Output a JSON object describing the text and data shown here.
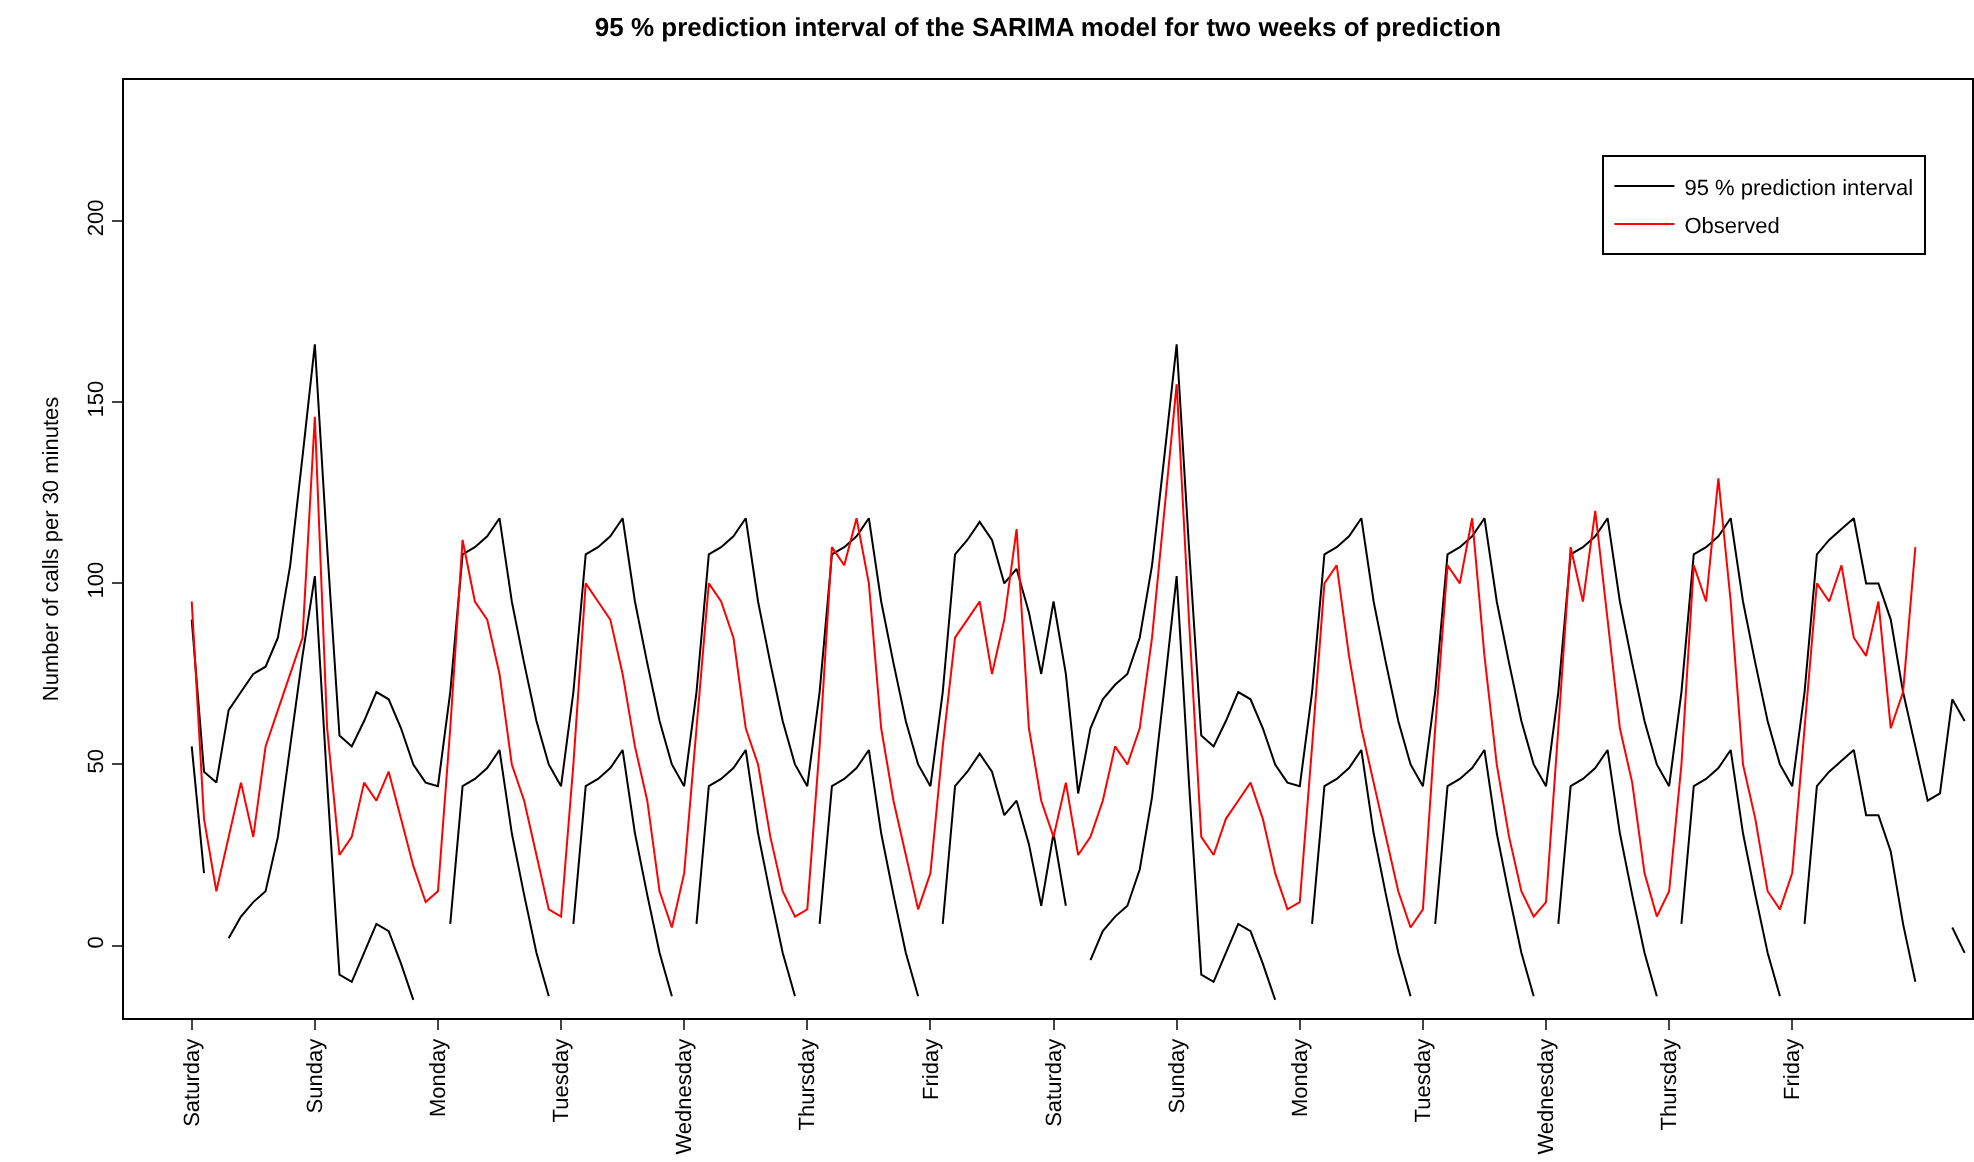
{
  "chart_data": {
    "type": "line",
    "title": "95 % prediction interval of the SARIMA model for two weeks of prediction",
    "ylabel": "Number of calls per 30 minutes",
    "categories": [
      "Saturday",
      null,
      null,
      null,
      null,
      null,
      null,
      null,
      null,
      null,
      "Sunday",
      null,
      null,
      null,
      null,
      null,
      null,
      null,
      null,
      null,
      "Monday",
      null,
      null,
      null,
      null,
      null,
      null,
      null,
      null,
      null,
      "Tuesday",
      null,
      null,
      null,
      null,
      null,
      null,
      null,
      null,
      null,
      "Wednesday",
      null,
      null,
      null,
      null,
      null,
      null,
      null,
      null,
      null,
      "Thursday",
      null,
      null,
      null,
      null,
      null,
      null,
      null,
      null,
      null,
      "Friday",
      null,
      null,
      null,
      null,
      null,
      null,
      null,
      null,
      null,
      "Saturday",
      null,
      null,
      null,
      null,
      null,
      null,
      null,
      null,
      null,
      "Sunday",
      null,
      null,
      null,
      null,
      null,
      null,
      null,
      null,
      null,
      "Monday",
      null,
      null,
      null,
      null,
      null,
      null,
      null,
      null,
      null,
      "Tuesday",
      null,
      null,
      null,
      null,
      null,
      null,
      null,
      null,
      null,
      "Wednesday",
      null,
      null,
      null,
      null,
      null,
      null,
      null,
      null,
      null,
      "Thursday",
      null,
      null,
      null,
      null,
      null,
      null,
      null,
      null,
      null,
      "Friday",
      null,
      null,
      null,
      null,
      null,
      null,
      null,
      null,
      null,
      null,
      null,
      null,
      null,
      null
    ],
    "ylim": [
      -20,
      239
    ],
    "yticks": [
      0,
      50,
      100,
      150,
      200
    ],
    "grid": false,
    "legend": "top right",
    "series": [
      {
        "name": "95 % prediction interval",
        "color": "#000000",
        "values": [
          90,
          48,
          45,
          65,
          70,
          75,
          77,
          85,
          105,
          135,
          166,
          110,
          58,
          55,
          62,
          70,
          68,
          60,
          50,
          45,
          44,
          70,
          108,
          110,
          113,
          118,
          95,
          78,
          62,
          50,
          44,
          70,
          108,
          110,
          113,
          118,
          95,
          78,
          62,
          50,
          44,
          70,
          108,
          110,
          113,
          118,
          95,
          78,
          62,
          50,
          44,
          70,
          108,
          110,
          113,
          118,
          95,
          78,
          62,
          50,
          44,
          70,
          108,
          112,
          117,
          112,
          100,
          104,
          92,
          75,
          95,
          75,
          42,
          60,
          68,
          72,
          75,
          85,
          105,
          135,
          166,
          110,
          58,
          55,
          62,
          70,
          68,
          60,
          50,
          45,
          44,
          70,
          108,
          110,
          113,
          118,
          95,
          78,
          62,
          50,
          44,
          70,
          108,
          110,
          113,
          118,
          95,
          78,
          62,
          50,
          44,
          70,
          108,
          110,
          113,
          118,
          95,
          78,
          62,
          50,
          44,
          70,
          108,
          110,
          113,
          118,
          95,
          78,
          62,
          50,
          44,
          70,
          108,
          112,
          115,
          118,
          100,
          100,
          90,
          70,
          55,
          40,
          42,
          68,
          62
        ]
      },
      {
        "color": "#000000",
        "values": [
          55,
          20,
          null,
          2,
          8,
          12,
          15,
          30,
          55,
          80,
          102,
          45,
          -8,
          -10,
          -2,
          6,
          4,
          -5,
          -15,
          null,
          null,
          6,
          44,
          46,
          49,
          54,
          31,
          14,
          -2,
          -14,
          null,
          6,
          44,
          46,
          49,
          54,
          31,
          14,
          -2,
          -14,
          null,
          6,
          44,
          46,
          49,
          54,
          31,
          14,
          -2,
          -14,
          null,
          6,
          44,
          46,
          49,
          54,
          31,
          14,
          -2,
          -14,
          null,
          6,
          44,
          48,
          53,
          48,
          36,
          40,
          28,
          11,
          31,
          11,
          null,
          -4,
          4,
          8,
          11,
          21,
          41,
          71,
          102,
          45,
          -8,
          -10,
          -2,
          6,
          4,
          -5,
          -15,
          null,
          null,
          6,
          44,
          46,
          49,
          54,
          31,
          14,
          -2,
          -14,
          null,
          6,
          44,
          46,
          49,
          54,
          31,
          14,
          -2,
          -14,
          null,
          6,
          44,
          46,
          49,
          54,
          31,
          14,
          -2,
          -14,
          null,
          6,
          44,
          46,
          49,
          54,
          31,
          14,
          -2,
          -14,
          null,
          6,
          44,
          48,
          51,
          54,
          36,
          36,
          26,
          6,
          -10,
          null,
          null,
          5,
          -2
        ]
      },
      {
        "name": "Observed",
        "color": "#ff0000",
        "values": [
          95,
          35,
          15,
          30,
          45,
          30,
          55,
          65,
          75,
          85,
          146,
          60,
          25,
          30,
          45,
          40,
          48,
          35,
          22,
          12,
          15,
          60,
          112,
          95,
          90,
          75,
          50,
          40,
          25,
          10,
          8,
          50,
          100,
          95,
          90,
          75,
          55,
          40,
          15,
          5,
          20,
          60,
          100,
          95,
          85,
          60,
          50,
          30,
          15,
          8,
          10,
          55,
          110,
          105,
          118,
          100,
          60,
          40,
          25,
          10,
          20,
          55,
          85,
          90,
          95,
          75,
          90,
          115,
          60,
          40,
          30,
          45,
          25,
          30,
          40,
          55,
          50,
          60,
          85,
          120,
          155,
          90,
          30,
          25,
          35,
          40,
          45,
          35,
          20,
          10,
          12,
          55,
          100,
          105,
          80,
          60,
          45,
          30,
          15,
          5,
          10,
          60,
          105,
          100,
          118,
          80,
          50,
          30,
          15,
          8,
          12,
          60,
          110,
          95,
          120,
          90,
          60,
          45,
          20,
          8,
          15,
          50,
          105,
          95,
          129,
          95,
          50,
          35,
          15,
          10,
          20,
          60,
          100,
          95,
          105,
          85,
          80,
          95,
          60,
          70,
          110,
          null,
          null,
          null,
          null
        ]
      }
    ]
  }
}
